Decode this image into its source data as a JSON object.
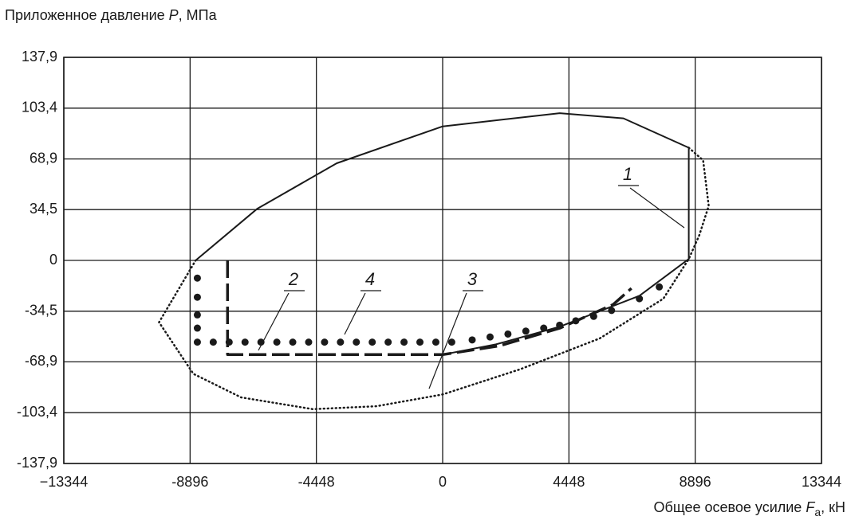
{
  "chart_data": {
    "type": "line",
    "ylabel_parts": [
      "Приложенное давление",
      "P",
      ", МПа"
    ],
    "xlabel_parts": [
      "Общее осевое усилие",
      "F",
      "a",
      ", кН"
    ],
    "xlim": [
      -13344,
      13344
    ],
    "xticks": [
      {
        "value": -13344,
        "label": "−13344"
      },
      {
        "value": -8896,
        "label": "-8896"
      },
      {
        "value": -4448,
        "label": "-4448"
      },
      0,
      4448,
      8896,
      13344
    ],
    "ylim": [
      -137.9,
      137.9
    ],
    "yticks": [
      {
        "value": 137.9,
        "label": "137,9"
      },
      {
        "value": 103.4,
        "label": "103,4"
      },
      {
        "value": 68.9,
        "label": "68,9"
      },
      {
        "value": 34.5,
        "label": "34,5"
      },
      0,
      {
        "value": -34.5,
        "label": "-34,5"
      },
      {
        "value": -68.9,
        "label": "-68,9"
      },
      {
        "value": -103.4,
        "label": "-103,4"
      },
      {
        "value": -137.9,
        "label": "-137,9"
      }
    ],
    "grid": true,
    "series": [
      {
        "name": "1",
        "style": "solid",
        "color": "#1a1a1a",
        "x": [
          -8700,
          -6538,
          -3732,
          0,
          4125,
          6370,
          8670,
          8670,
          6931,
          4125,
          1880,
          0
        ],
        "y": [
          0,
          35,
          66,
          91,
          100,
          96.5,
          76.5,
          1,
          -24,
          -45,
          -57,
          -64
        ]
      },
      {
        "name": "2",
        "style": "dashed",
        "color": "#1a1a1a",
        "x": [
          -7576,
          -7576,
          0,
          2000,
          4125,
          6000,
          6650
        ],
        "y": [
          0,
          -64,
          -64,
          -58,
          -46,
          -30,
          -19
        ]
      },
      {
        "name": "3",
        "style": "dotted",
        "color": "#1a1a1a",
        "x": [
          8670,
          9176,
          9372,
          9036,
          8670,
          7773,
          5528,
          2722,
          0,
          -2329,
          -4574,
          -7100,
          -8783,
          -9990,
          -8700
        ],
        "y": [
          76.5,
          68,
          37,
          17,
          1,
          -26,
          -53,
          -74,
          -91,
          -99,
          -101,
          -93,
          -77,
          -42,
          0
        ]
      },
      {
        "name": "4",
        "style": "markers",
        "color": "#1a1a1a",
        "x": [
          -8640,
          -8640,
          -8640,
          -8640,
          -8640,
          -8080,
          -7520,
          -6960,
          -6400,
          -5840,
          -5280,
          -4720,
          -4160,
          -3600,
          -3040,
          -2480,
          -1920,
          -1360,
          -800,
          -240,
          320,
          1040,
          1670,
          2300,
          2930,
          3560,
          4120,
          4690,
          5320,
          5950,
          6930,
          7630
        ],
        "y": [
          -12,
          -25,
          -37,
          -46,
          -55.5,
          -55.5,
          -55.5,
          -55.5,
          -55.5,
          -55.5,
          -55.5,
          -55.5,
          -55.5,
          -55.5,
          -55.5,
          -55.5,
          -55.5,
          -55.5,
          -55.5,
          -55.5,
          -55.5,
          -54,
          -52,
          -50,
          -48,
          -46,
          -44,
          -41,
          -38,
          -34,
          -26,
          -18
        ]
      }
    ]
  }
}
